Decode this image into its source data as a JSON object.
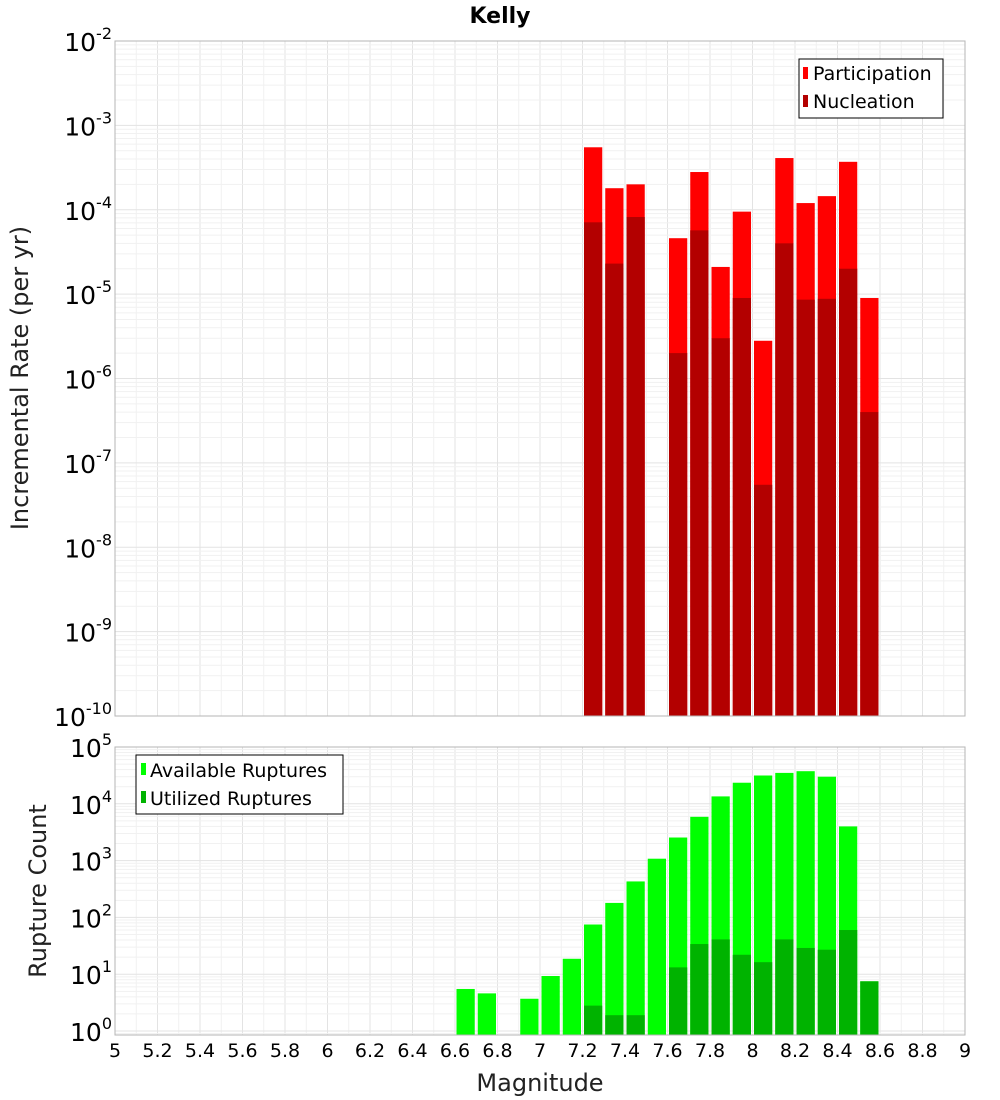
{
  "title": "Kelly",
  "colors": {
    "participation": "#ff0000",
    "nucleation": "#b30000",
    "available": "#00ff00",
    "utilized": "#00b300",
    "grid_major": "#e3e3e3",
    "grid_minor": "#f1f1f1",
    "frame": "#b5b5b5"
  },
  "chart_data": [
    {
      "type": "bar",
      "name": "rates",
      "title": "Kelly",
      "xlabel": "Magnitude",
      "ylabel": "Incremental Rate (per yr)",
      "yscale": "log",
      "xlim": [
        5,
        9
      ],
      "ylim_exp": [
        -10,
        -2
      ],
      "bin_width": 0.1,
      "legend": [
        "Participation",
        "Nucleation"
      ],
      "legend_position": "top-right",
      "x": [
        7.25,
        7.35,
        7.45,
        7.65,
        7.75,
        7.85,
        7.95,
        8.05,
        8.15,
        8.25,
        8.35,
        8.45,
        8.55
      ],
      "series": [
        {
          "name": "Participation",
          "values": [
            0.00055,
            0.00018,
            0.0002,
            4.6e-05,
            0.00028,
            2.1e-05,
            9.5e-05,
            2.8e-06,
            0.00041,
            0.00012,
            0.000145,
            0.00037,
            9e-06
          ]
        },
        {
          "name": "Nucleation",
          "values": [
            7.1e-05,
            2.3e-05,
            8.2e-05,
            2e-06,
            5.7e-05,
            3e-06,
            9e-06,
            5.5e-08,
            4e-05,
            8.6e-06,
            8.8e-06,
            2e-05,
            4e-07
          ]
        }
      ],
      "y_tick_labels": [
        {
          "base": "10",
          "exp": "-10"
        },
        {
          "base": "10",
          "exp": "-9"
        },
        {
          "base": "10",
          "exp": "-8"
        },
        {
          "base": "10",
          "exp": "-7"
        },
        {
          "base": "10",
          "exp": "-6"
        },
        {
          "base": "10",
          "exp": "-5"
        },
        {
          "base": "10",
          "exp": "-4"
        },
        {
          "base": "10",
          "exp": "-3"
        },
        {
          "base": "10",
          "exp": "-2"
        }
      ]
    },
    {
      "type": "bar",
      "name": "counts",
      "xlabel": "Magnitude",
      "ylabel": "Rupture Count",
      "yscale": "log",
      "xlim": [
        5,
        9
      ],
      "ylim_exp": [
        -0.07,
        5
      ],
      "bin_width": 0.1,
      "legend": [
        "Available Ruptures",
        "Utilized Ruptures"
      ],
      "legend_position": "top-left",
      "x": [
        6.65,
        6.75,
        6.95,
        7.05,
        7.15,
        7.25,
        7.35,
        7.45,
        7.55,
        7.65,
        7.75,
        7.85,
        7.95,
        8.05,
        8.15,
        8.25,
        8.35,
        8.45,
        8.55
      ],
      "series": [
        {
          "name": "Available Ruptures",
          "values": [
            5.5,
            4.6,
            3.7,
            9.3,
            18.7,
            75,
            180,
            430,
            1080,
            2550,
            5900,
            13500,
            23500,
            31500,
            35000,
            37500,
            30000,
            4000,
            7.5
          ]
        },
        {
          "name": "Utilized Ruptures",
          "values": [
            null,
            null,
            null,
            null,
            null,
            2.8,
            1.9,
            1.9,
            null,
            13.2,
            34,
            41,
            22,
            16.3,
            41,
            29,
            27,
            60,
            7.5
          ]
        }
      ],
      "y_tick_labels": [
        {
          "base": "10",
          "exp": "0"
        },
        {
          "base": "10",
          "exp": "1"
        },
        {
          "base": "10",
          "exp": "2"
        },
        {
          "base": "10",
          "exp": "3"
        },
        {
          "base": "10",
          "exp": "4"
        },
        {
          "base": "10",
          "exp": "5"
        }
      ],
      "x_tick_labels": [
        "5",
        "5.2",
        "5.4",
        "5.6",
        "5.8",
        "6",
        "6.2",
        "6.4",
        "6.6",
        "6.8",
        "7",
        "7.2",
        "7.4",
        "7.6",
        "7.8",
        "8",
        "8.2",
        "8.4",
        "8.6",
        "8.8",
        "9"
      ]
    }
  ]
}
